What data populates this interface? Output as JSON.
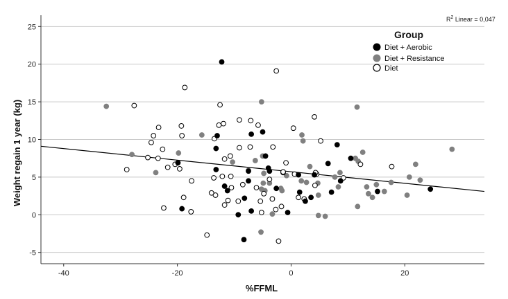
{
  "chart_data": {
    "type": "scatter",
    "xlabel": "%FFML",
    "ylabel": "Weight regain 1 year (kg)",
    "xlim": [
      -44,
      34
    ],
    "ylim": [
      -6.5,
      26.5
    ],
    "x_ticks": [
      -40,
      -20,
      0,
      20
    ],
    "y_ticks": [
      -5,
      0,
      5,
      10,
      15,
      20,
      25
    ],
    "grid": "horizontal",
    "legend": {
      "title": "Group",
      "placement": "top-right",
      "entries": [
        {
          "label": "Diet + Aerobic",
          "marker": "filled-black"
        },
        {
          "label": "Diet + Resistance",
          "marker": "filled-gray"
        },
        {
          "label": "Diet",
          "marker": "open-circle"
        }
      ]
    },
    "fit_line": {
      "label_prefix": "R",
      "label_sup": "2",
      "label_suffix": " Linear = 0,047",
      "start": [
        -44,
        9.1
      ],
      "end": [
        34,
        3.1
      ]
    },
    "colors": {
      "aerobic": "#000000",
      "resistance": "#808080",
      "diet": "#ffffff",
      "line": "#000000",
      "grid": "#c8c8c8"
    },
    "series": [
      {
        "name": "Diet + Aerobic",
        "points": [
          [
            -12.2,
            20.3
          ],
          [
            -13,
            10.5
          ],
          [
            -7,
            10.7
          ],
          [
            -5,
            11
          ],
          [
            -13.2,
            8.8
          ],
          [
            -13.2,
            6
          ],
          [
            -7.5,
            5.8
          ],
          [
            -4,
            6.2
          ],
          [
            -3.8,
            5.8
          ],
          [
            -4.5,
            7.8
          ],
          [
            -2.6,
            3.5
          ],
          [
            -11.7,
            3.8
          ],
          [
            -7.5,
            4.5
          ],
          [
            -11.2,
            3.2
          ],
          [
            -8.2,
            2.2
          ],
          [
            -19.9,
            6.9
          ],
          [
            -19.2,
            0.8
          ],
          [
            -9.3,
            0
          ],
          [
            -0.6,
            0.3
          ],
          [
            -7.0,
            0.5
          ],
          [
            -8.3,
            -3.3
          ],
          [
            1.5,
            3.0
          ],
          [
            2.5,
            1.8
          ],
          [
            3.5,
            2.3
          ],
          [
            4.1,
            5.3
          ],
          [
            1.3,
            5.3
          ],
          [
            6.5,
            6.8
          ],
          [
            7.1,
            3.0
          ],
          [
            8.1,
            9.3
          ],
          [
            10.5,
            7.5
          ],
          [
            15.2,
            3.1
          ],
          [
            24.5,
            3.4
          ],
          [
            8.7,
            4.5
          ]
        ]
      },
      {
        "name": "Diet + Resistance",
        "points": [
          [
            -32.5,
            14.4
          ],
          [
            -28,
            8
          ],
          [
            -23.8,
            5.6
          ],
          [
            -19.8,
            8.2
          ],
          [
            -15.7,
            10.6
          ],
          [
            -10.3,
            7.0
          ],
          [
            -7.5,
            5.9
          ],
          [
            -6.3,
            7.2
          ],
          [
            -5.2,
            15
          ],
          [
            -5,
            7.8
          ],
          [
            -4.8,
            5.5
          ],
          [
            -4.9,
            4.2
          ],
          [
            -4.6,
            3.2
          ],
          [
            -5.2,
            3.4
          ],
          [
            -3.8,
            4.2
          ],
          [
            -1.8,
            3.5
          ],
          [
            -0.8,
            5.2
          ],
          [
            -5.3,
            -2.3
          ],
          [
            1.9,
            10.6
          ],
          [
            2.1,
            9.8
          ],
          [
            1.8,
            4.5
          ],
          [
            2.7,
            4.3
          ],
          [
            3.3,
            6.4
          ],
          [
            4.7,
            4.2
          ],
          [
            4.8,
            2.6
          ],
          [
            8.3,
            3.7
          ],
          [
            8.6,
            5.6
          ],
          [
            7.7,
            5.0
          ],
          [
            11.6,
            14.3
          ],
          [
            11.3,
            7.5
          ],
          [
            11.8,
            7.1
          ],
          [
            11.7,
            1.1
          ],
          [
            12.6,
            8.3
          ],
          [
            13.3,
            3.7
          ],
          [
            13.6,
            2.8
          ],
          [
            14.3,
            2.3
          ],
          [
            15,
            4
          ],
          [
            16.4,
            3.1
          ],
          [
            17.6,
            4.3
          ],
          [
            20.8,
            5.0
          ],
          [
            21.9,
            6.7
          ],
          [
            22.7,
            4.6
          ],
          [
            20.4,
            2.6
          ],
          [
            28.3,
            8.7
          ],
          [
            4.8,
            -0.1
          ],
          [
            6,
            -0.2
          ],
          [
            -3.3,
            0.1
          ],
          [
            -1.6,
            3.2
          ]
        ]
      },
      {
        "name": "Diet",
        "points": [
          [
            -27.6,
            14.5
          ],
          [
            -18.7,
            16.9
          ],
          [
            -12.5,
            14.6
          ],
          [
            -2.6,
            19.1
          ],
          [
            -23.3,
            11.6
          ],
          [
            -19.3,
            11.8
          ],
          [
            -12.7,
            11.9
          ],
          [
            -11.9,
            12.1
          ],
          [
            -9.1,
            12.6
          ],
          [
            -7.1,
            12.5
          ],
          [
            -5.8,
            11.9
          ],
          [
            -24.6,
            9.6
          ],
          [
            -19.2,
            10.5
          ],
          [
            -13.5,
            10.1
          ],
          [
            -10.7,
            7.8
          ],
          [
            -9.1,
            8.9
          ],
          [
            -7.2,
            9.0
          ],
          [
            -3.2,
            9.0
          ],
          [
            4.1,
            13
          ],
          [
            0.4,
            11.5
          ],
          [
            5.2,
            9.8
          ],
          [
            -22.6,
            8.7
          ],
          [
            -20.4,
            6.7
          ],
          [
            -21.7,
            6.3
          ],
          [
            -23.4,
            7.5
          ],
          [
            -25.2,
            7.6
          ],
          [
            -28.9,
            6.0
          ],
          [
            -19.6,
            6.1
          ],
          [
            -17.5,
            4.5
          ],
          [
            -13.6,
            4.9
          ],
          [
            -11.7,
            7.4
          ],
          [
            -10.6,
            5.1
          ],
          [
            -8.5,
            4.0
          ],
          [
            -6.1,
            3.6
          ],
          [
            -3.8,
            4.7
          ],
          [
            -1.4,
            5.6
          ],
          [
            -1.4,
            5.7
          ],
          [
            -0.9,
            6.9
          ],
          [
            -12.1,
            5.1
          ],
          [
            -18.9,
            2.3
          ],
          [
            -14,
            2.9
          ],
          [
            -13.3,
            2.6
          ],
          [
            -11.1,
            1.9
          ],
          [
            -10.5,
            3.6
          ],
          [
            -9.3,
            1.8
          ],
          [
            -5.4,
            1.8
          ],
          [
            -3.3,
            2.1
          ],
          [
            -1.7,
            1.1
          ],
          [
            -2.7,
            0.7
          ],
          [
            -2.2,
            -3.5
          ],
          [
            -14.8,
            -2.7
          ],
          [
            -22.4,
            0.9
          ],
          [
            -17.6,
            0.4
          ],
          [
            -11.7,
            1.3
          ],
          [
            -5.2,
            0.3
          ],
          [
            -4.8,
            2.8
          ],
          [
            1.3,
            2.3
          ],
          [
            2.3,
            2.1
          ],
          [
            4.5,
            5.4
          ],
          [
            4.3,
            5.6
          ],
          [
            4.2,
            3.9
          ],
          [
            9.2,
            4.9
          ],
          [
            12.2,
            6.7
          ],
          [
            17.7,
            6.4
          ],
          [
            -24.2,
            10.5
          ],
          [
            0.6,
            5.4
          ]
        ]
      }
    ]
  }
}
